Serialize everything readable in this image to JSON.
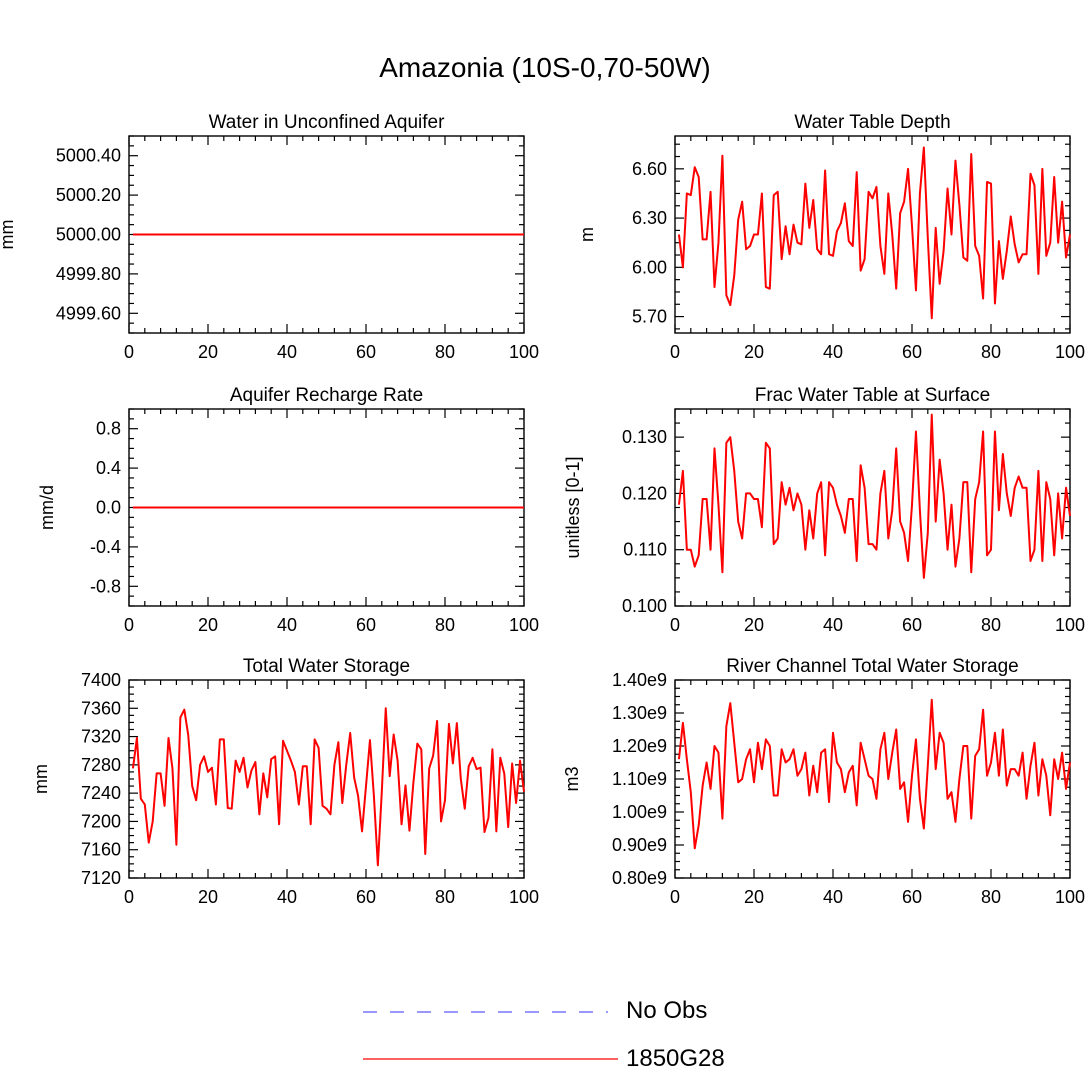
{
  "figure_title": "Amazonia (10S-0,70-50W)",
  "colors": {
    "series": "#ff0000",
    "obs": "#7777ff",
    "axis": "#000000",
    "background": "#ffffff"
  },
  "legend": {
    "items": [
      {
        "label": "No Obs",
        "style": "dashed",
        "color": "#7777ff"
      },
      {
        "label": "1850G28",
        "style": "solid",
        "color": "#ff0000"
      }
    ]
  },
  "chart_data": [
    {
      "type": "line",
      "title": "Water in Unconfined Aquifer",
      "ylabel": "mm",
      "xlabel": "",
      "xlim": [
        0,
        100
      ],
      "xticks": [
        0,
        20,
        40,
        60,
        80,
        100
      ],
      "ylim": [
        4999.5,
        5000.5
      ],
      "yticks": [
        4999.6,
        4999.8,
        5000.0,
        5000.2,
        5000.4
      ],
      "ytick_labels": [
        "4999.60",
        "4999.80",
        "5000.00",
        "5000.20",
        "5000.40"
      ],
      "series": [
        {
          "name": "1850G28",
          "x_start": 1,
          "x_step": 1,
          "values": [
            5000,
            5000,
            5000,
            5000,
            5000,
            5000,
            5000,
            5000,
            5000,
            5000,
            5000,
            5000,
            5000,
            5000,
            5000,
            5000,
            5000,
            5000,
            5000,
            5000,
            5000,
            5000,
            5000,
            5000,
            5000,
            5000,
            5000,
            5000,
            5000,
            5000,
            5000,
            5000,
            5000,
            5000,
            5000,
            5000,
            5000,
            5000,
            5000,
            5000,
            5000,
            5000,
            5000,
            5000,
            5000,
            5000,
            5000,
            5000,
            5000,
            5000,
            5000,
            5000,
            5000,
            5000,
            5000,
            5000,
            5000,
            5000,
            5000,
            5000,
            5000,
            5000,
            5000,
            5000,
            5000,
            5000,
            5000,
            5000,
            5000,
            5000,
            5000,
            5000,
            5000,
            5000,
            5000,
            5000,
            5000,
            5000,
            5000,
            5000,
            5000,
            5000,
            5000,
            5000,
            5000,
            5000,
            5000,
            5000,
            5000,
            5000,
            5000,
            5000,
            5000,
            5000,
            5000,
            5000,
            5000,
            5000,
            5000,
            5000
          ]
        }
      ]
    },
    {
      "type": "line",
      "title": "Water Table Depth",
      "ylabel": "m",
      "xlabel": "",
      "xlim": [
        0,
        100
      ],
      "xticks": [
        0,
        20,
        40,
        60,
        80,
        100
      ],
      "ylim": [
        5.6,
        6.8
      ],
      "yticks": [
        5.7,
        6.0,
        6.3,
        6.6
      ],
      "ytick_labels": [
        "5.70",
        "6.00",
        "6.30",
        "6.60"
      ],
      "series": [
        {
          "name": "1850G28",
          "x_start": 1,
          "x_step": 1,
          "values": [
            6.2,
            6.0,
            6.45,
            6.44,
            6.61,
            6.55,
            6.17,
            6.17,
            6.46,
            5.88,
            6.15,
            6.68,
            5.83,
            5.77,
            5.95,
            6.29,
            6.4,
            6.11,
            6.13,
            6.2,
            6.2,
            6.45,
            5.88,
            5.87,
            6.44,
            6.46,
            6.05,
            6.25,
            6.08,
            6.26,
            6.15,
            6.14,
            6.51,
            6.24,
            6.41,
            6.11,
            6.08,
            6.59,
            6.08,
            6.07,
            6.22,
            6.27,
            6.39,
            6.16,
            6.13,
            6.58,
            5.98,
            6.05,
            6.46,
            6.42,
            6.49,
            6.13,
            5.96,
            6.45,
            6.2,
            5.87,
            6.33,
            6.4,
            6.6,
            6.25,
            5.86,
            6.45,
            6.73,
            6.18,
            5.69,
            6.24,
            5.9,
            6.1,
            6.48,
            6.2,
            6.65,
            6.38,
            6.06,
            6.04,
            6.69,
            6.13,
            6.07,
            5.81,
            6.52,
            6.51,
            5.78,
            6.16,
            5.93,
            6.1,
            6.31,
            6.14,
            6.03,
            6.08,
            6.08,
            6.57,
            6.5,
            5.96,
            6.6,
            6.07,
            6.15,
            6.55,
            6.15,
            6.4,
            6.06,
            6.2
          ]
        }
      ]
    },
    {
      "type": "line",
      "title": "Aquifer Recharge Rate",
      "ylabel": "mm/d",
      "xlabel": "",
      "xlim": [
        0,
        100
      ],
      "xticks": [
        0,
        20,
        40,
        60,
        80,
        100
      ],
      "ylim": [
        -1.0,
        1.0
      ],
      "yticks": [
        -0.8,
        -0.4,
        0.0,
        0.4,
        0.8
      ],
      "ytick_labels": [
        "-0.8",
        "-0.4",
        "0.0",
        "0.4",
        "0.8"
      ],
      "series": [
        {
          "name": "1850G28",
          "x_start": 1,
          "x_step": 1,
          "values": [
            0,
            0,
            0,
            0,
            0,
            0,
            0,
            0,
            0,
            0,
            0,
            0,
            0,
            0,
            0,
            0,
            0,
            0,
            0,
            0,
            0,
            0,
            0,
            0,
            0,
            0,
            0,
            0,
            0,
            0,
            0,
            0,
            0,
            0,
            0,
            0,
            0,
            0,
            0,
            0,
            0,
            0,
            0,
            0,
            0,
            0,
            0,
            0,
            0,
            0,
            0,
            0,
            0,
            0,
            0,
            0,
            0,
            0,
            0,
            0,
            0,
            0,
            0,
            0,
            0,
            0,
            0,
            0,
            0,
            0,
            0,
            0,
            0,
            0,
            0,
            0,
            0,
            0,
            0,
            0,
            0,
            0,
            0,
            0,
            0,
            0,
            0,
            0,
            0,
            0,
            0,
            0,
            0,
            0,
            0,
            0,
            0,
            0,
            0,
            0
          ]
        }
      ]
    },
    {
      "type": "line",
      "title": "Frac Water Table at Surface",
      "ylabel": "unitless [0-1]",
      "xlabel": "",
      "xlim": [
        0,
        100
      ],
      "xticks": [
        0,
        20,
        40,
        60,
        80,
        100
      ],
      "ylim": [
        0.1,
        0.135
      ],
      "yticks": [
        0.1,
        0.11,
        0.12,
        0.13
      ],
      "ytick_labels": [
        "0.100",
        "0.110",
        "0.120",
        "0.130"
      ],
      "series": [
        {
          "name": "1850G28",
          "x_start": 1,
          "x_step": 1,
          "values": [
            0.118,
            0.124,
            0.11,
            0.11,
            0.107,
            0.109,
            0.119,
            0.119,
            0.11,
            0.128,
            0.118,
            0.106,
            0.129,
            0.13,
            0.124,
            0.115,
            0.112,
            0.12,
            0.12,
            0.119,
            0.119,
            0.114,
            0.129,
            0.128,
            0.111,
            0.112,
            0.122,
            0.118,
            0.121,
            0.117,
            0.12,
            0.118,
            0.11,
            0.117,
            0.112,
            0.12,
            0.122,
            0.109,
            0.122,
            0.121,
            0.118,
            0.116,
            0.113,
            0.119,
            0.119,
            0.108,
            0.125,
            0.121,
            0.111,
            0.111,
            0.11,
            0.12,
            0.124,
            0.112,
            0.117,
            0.128,
            0.115,
            0.113,
            0.108,
            0.118,
            0.131,
            0.117,
            0.105,
            0.113,
            0.134,
            0.115,
            0.126,
            0.12,
            0.11,
            0.118,
            0.107,
            0.112,
            0.122,
            0.122,
            0.106,
            0.119,
            0.122,
            0.131,
            0.109,
            0.11,
            0.131,
            0.117,
            0.127,
            0.12,
            0.116,
            0.121,
            0.123,
            0.121,
            0.121,
            0.108,
            0.11,
            0.124,
            0.108,
            0.122,
            0.119,
            0.109,
            0.12,
            0.112,
            0.121,
            0.116
          ]
        }
      ]
    },
    {
      "type": "line",
      "title": "Total Water Storage",
      "ylabel": "mm",
      "xlabel": "",
      "xlim": [
        0,
        100
      ],
      "xticks": [
        0,
        20,
        40,
        60,
        80,
        100
      ],
      "ylim": [
        7120,
        7400
      ],
      "yticks": [
        7120,
        7160,
        7200,
        7240,
        7280,
        7320,
        7360,
        7400
      ],
      "ytick_labels": [
        "7120",
        "7160",
        "7200",
        "7240",
        "7280",
        "7320",
        "7360",
        "7400"
      ],
      "series": [
        {
          "name": "1850G28",
          "x_start": 1,
          "x_step": 1,
          "values": [
            7275,
            7318,
            7232,
            7224,
            7170,
            7200,
            7268,
            7268,
            7222,
            7318,
            7275,
            7167,
            7347,
            7358,
            7322,
            7250,
            7230,
            7280,
            7292,
            7270,
            7276,
            7224,
            7316,
            7316,
            7219,
            7218,
            7286,
            7270,
            7290,
            7248,
            7272,
            7284,
            7210,
            7268,
            7234,
            7288,
            7292,
            7196,
            7314,
            7300,
            7286,
            7270,
            7224,
            7278,
            7278,
            7196,
            7316,
            7304,
            7222,
            7218,
            7210,
            7280,
            7312,
            7226,
            7280,
            7325,
            7262,
            7236,
            7186,
            7250,
            7315,
            7236,
            7138,
            7242,
            7360,
            7264,
            7323,
            7286,
            7196,
            7251,
            7187,
            7255,
            7310,
            7302,
            7154,
            7275,
            7293,
            7342,
            7200,
            7230,
            7338,
            7282,
            7339,
            7260,
            7218,
            7278,
            7290,
            7274,
            7276,
            7185,
            7205,
            7302,
            7186,
            7290,
            7268,
            7192,
            7282,
            7226,
            7286,
            7242
          ]
        }
      ]
    },
    {
      "type": "line",
      "title": "River Channel Total Water Storage",
      "ylabel": "m3",
      "xlabel": "",
      "xlim": [
        0,
        100
      ],
      "xticks": [
        0,
        20,
        40,
        60,
        80,
        100
      ],
      "ylim": [
        800000000.0,
        1400000000.0
      ],
      "yticks": [
        800000000.0,
        900000000.0,
        1000000000.0,
        1100000000.0,
        1200000000.0,
        1300000000.0,
        1400000000.0
      ],
      "ytick_labels": [
        "0.80e9",
        "0.90e9",
        "1.00e9",
        "1.10e9",
        "1.20e9",
        "1.30e9",
        "1.40e9"
      ],
      "series": [
        {
          "name": "1850G28",
          "x_start": 1,
          "x_step": 1,
          "values": [
            1160000000.0,
            1270000000.0,
            1160000000.0,
            1060000000.0,
            890000000.0,
            960000000.0,
            1080000000.0,
            1150000000.0,
            1070000000.0,
            1200000000.0,
            1180000000.0,
            980000000.0,
            1260000000.0,
            1330000000.0,
            1210000000.0,
            1090000000.0,
            1100000000.0,
            1160000000.0,
            1190000000.0,
            1090000000.0,
            1210000000.0,
            1130000000.0,
            1220000000.0,
            1200000000.0,
            1050000000.0,
            1050000000.0,
            1190000000.0,
            1150000000.0,
            1160000000.0,
            1190000000.0,
            1110000000.0,
            1130000000.0,
            1180000000.0,
            1050000000.0,
            1140000000.0,
            1060000000.0,
            1180000000.0,
            1190000000.0,
            1030000000.0,
            1240000000.0,
            1150000000.0,
            1130000000.0,
            1060000000.0,
            1120000000.0,
            1140000000.0,
            1020000000.0,
            1210000000.0,
            1160000000.0,
            1110000000.0,
            1100000000.0,
            1040000000.0,
            1190000000.0,
            1240000000.0,
            1100000000.0,
            1180000000.0,
            1250000000.0,
            1070000000.0,
            1090000000.0,
            970000000.0,
            1110000000.0,
            1220000000.0,
            1040000000.0,
            950000000.0,
            1140000000.0,
            1340000000.0,
            1130000000.0,
            1240000000.0,
            1210000000.0,
            1040000000.0,
            1060000000.0,
            970000000.0,
            1100000000.0,
            1200000000.0,
            1200000000.0,
            980000000.0,
            1170000000.0,
            1190000000.0,
            1310000000.0,
            1110000000.0,
            1150000000.0,
            1240000000.0,
            1110000000.0,
            1250000000.0,
            1080000000.0,
            1130000000.0,
            1130000000.0,
            1110000000.0,
            1180000000.0,
            1040000000.0,
            1140000000.0,
            1210000000.0,
            1050000000.0,
            1160000000.0,
            1110000000.0,
            990000000.0,
            1160000000.0,
            1100000000.0,
            1180000000.0,
            1070000000.0,
            1150000000.0
          ]
        }
      ]
    }
  ]
}
